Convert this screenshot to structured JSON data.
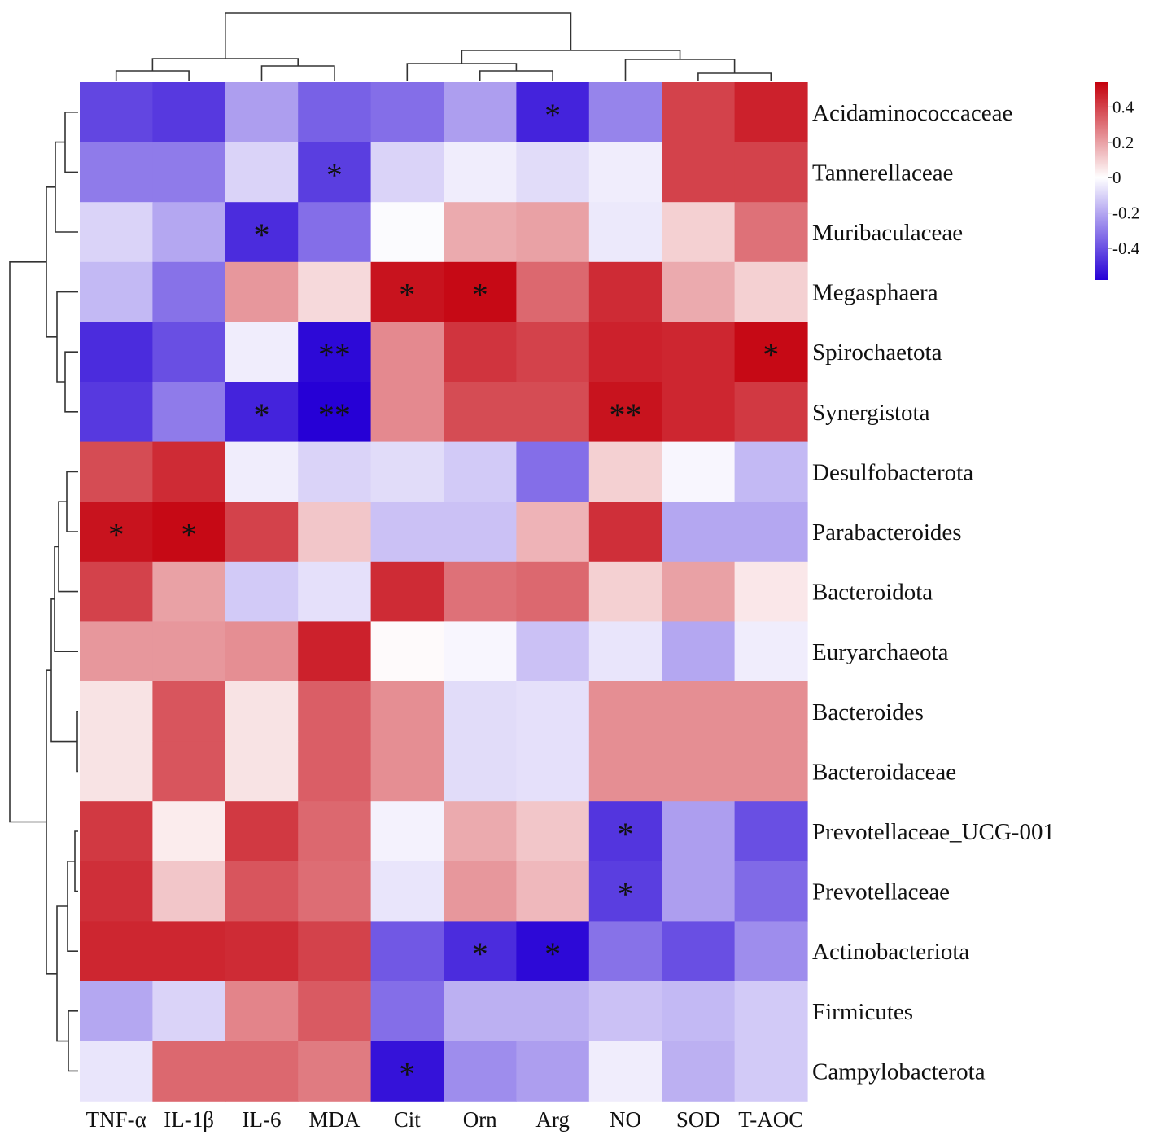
{
  "chart_data": {
    "type": "heatmap",
    "title": "",
    "rows": [
      "Acidaminococcaceae",
      "Tannerellaceae",
      "Muribaculaceae",
      "Megasphaera",
      "Spirochaetota",
      "Synergistota",
      "Desulfobacterota",
      "Parabacteroides",
      "Bacteroidota",
      "Euryarchaeota",
      "Bacteroides",
      "Bacteroidaceae",
      "Prevotellaceae_UCG-001",
      "Prevotellaceae",
      "Actinobacteriota",
      "Firmicutes",
      "Campylobacterota"
    ],
    "columns": [
      "TNF-α",
      "IL-1β",
      "IL-6",
      "MDA",
      "Cit",
      "Orn",
      "Arg",
      "NO",
      "SOD",
      "T-AOC"
    ],
    "values": [
      [
        -0.42,
        -0.45,
        -0.22,
        -0.36,
        -0.33,
        -0.22,
        -0.5,
        -0.28,
        0.4,
        0.47
      ],
      [
        -0.3,
        -0.3,
        -0.1,
        -0.44,
        -0.1,
        -0.04,
        -0.08,
        -0.04,
        0.4,
        0.4
      ],
      [
        -0.1,
        -0.2,
        -0.48,
        -0.33,
        -0.01,
        0.18,
        0.2,
        -0.05,
        0.1,
        0.3
      ],
      [
        -0.16,
        -0.32,
        0.22,
        0.08,
        0.5,
        0.52,
        0.32,
        0.45,
        0.18,
        0.1
      ],
      [
        -0.48,
        -0.4,
        -0.04,
        -0.56,
        0.25,
        0.43,
        0.4,
        0.47,
        0.46,
        0.52
      ],
      [
        -0.45,
        -0.3,
        -0.5,
        -0.58,
        0.25,
        0.38,
        0.38,
        0.5,
        0.46,
        0.42
      ],
      [
        0.38,
        0.45,
        -0.04,
        -0.1,
        -0.08,
        -0.12,
        -0.33,
        0.1,
        -0.02,
        -0.16
      ],
      [
        0.5,
        0.52,
        0.4,
        0.12,
        -0.14,
        -0.14,
        0.16,
        0.44,
        -0.2,
        -0.2
      ],
      [
        0.4,
        0.2,
        -0.12,
        -0.07,
        0.45,
        0.3,
        0.32,
        0.1,
        0.2,
        0.05
      ],
      [
        0.22,
        0.22,
        0.24,
        0.47,
        0.01,
        -0.02,
        -0.14,
        -0.06,
        -0.2,
        -0.04
      ],
      [
        0.06,
        0.36,
        0.06,
        0.34,
        0.24,
        -0.08,
        -0.07,
        0.24,
        0.24,
        0.24
      ],
      [
        0.06,
        0.36,
        0.06,
        0.34,
        0.24,
        -0.08,
        -0.07,
        0.24,
        0.24,
        0.24
      ],
      [
        0.42,
        0.04,
        0.42,
        0.32,
        -0.03,
        0.18,
        0.12,
        -0.46,
        -0.22,
        -0.4
      ],
      [
        0.44,
        0.12,
        0.36,
        0.31,
        -0.06,
        0.22,
        0.15,
        -0.44,
        -0.22,
        -0.34
      ],
      [
        0.46,
        0.46,
        0.45,
        0.4,
        -0.38,
        -0.48,
        -0.56,
        -0.32,
        -0.4,
        -0.26
      ],
      [
        -0.2,
        -0.1,
        0.26,
        0.35,
        -0.33,
        -0.18,
        -0.18,
        -0.14,
        -0.16,
        -0.12
      ],
      [
        -0.06,
        0.32,
        0.32,
        0.28,
        -0.54,
        -0.26,
        -0.22,
        -0.04,
        -0.18,
        -0.12
      ]
    ],
    "significance": [
      [
        "",
        "",
        "",
        "",
        "",
        "",
        "*",
        "",
        "",
        ""
      ],
      [
        "",
        "",
        "",
        "*",
        "",
        "",
        "",
        "",
        "",
        ""
      ],
      [
        "",
        "",
        "*",
        "",
        "",
        "",
        "",
        "",
        "",
        ""
      ],
      [
        "",
        "",
        "",
        "",
        "*",
        "*",
        "",
        "",
        "",
        ""
      ],
      [
        "",
        "",
        "",
        "**",
        "",
        "",
        "",
        "",
        "",
        "*"
      ],
      [
        "",
        "",
        "*",
        "**",
        "",
        "",
        "",
        "**",
        "",
        ""
      ],
      [
        "",
        "",
        "",
        "",
        "",
        "",
        "",
        "",
        "",
        ""
      ],
      [
        "*",
        "*",
        "",
        "",
        "",
        "",
        "",
        "",
        "",
        ""
      ],
      [
        "",
        "",
        "",
        "",
        "",
        "",
        "",
        "",
        "",
        ""
      ],
      [
        "",
        "",
        "",
        "",
        "",
        "",
        "",
        "",
        "",
        ""
      ],
      [
        "",
        "",
        "",
        "",
        "",
        "",
        "",
        "",
        "",
        ""
      ],
      [
        "",
        "",
        "",
        "",
        "",
        "",
        "",
        "",
        "",
        ""
      ],
      [
        "",
        "",
        "",
        "",
        "",
        "",
        "",
        "*",
        "",
        ""
      ],
      [
        "",
        "",
        "",
        "",
        "",
        "",
        "",
        "*",
        "",
        ""
      ],
      [
        "",
        "",
        "",
        "",
        "",
        "*",
        "*",
        "",
        "",
        ""
      ],
      [
        "",
        "",
        "",
        "",
        "",
        "",
        "",
        "",
        "",
        ""
      ],
      [
        "",
        "",
        "",
        "",
        "*",
        "",
        "",
        "",
        "",
        ""
      ]
    ],
    "colorbar": {
      "ticks": [
        0.4,
        0.2,
        0,
        -0.2,
        -0.4
      ],
      "tick_labels": [
        "0.4",
        "0.2",
        "0",
        "-0.2",
        "-0.4"
      ],
      "range": [
        -0.58,
        0.54
      ],
      "colors": {
        "low": "#2600d6",
        "mid": "#ffffff",
        "high": "#c4000c"
      }
    },
    "row_dendrogram": true,
    "column_dendrogram": true
  }
}
